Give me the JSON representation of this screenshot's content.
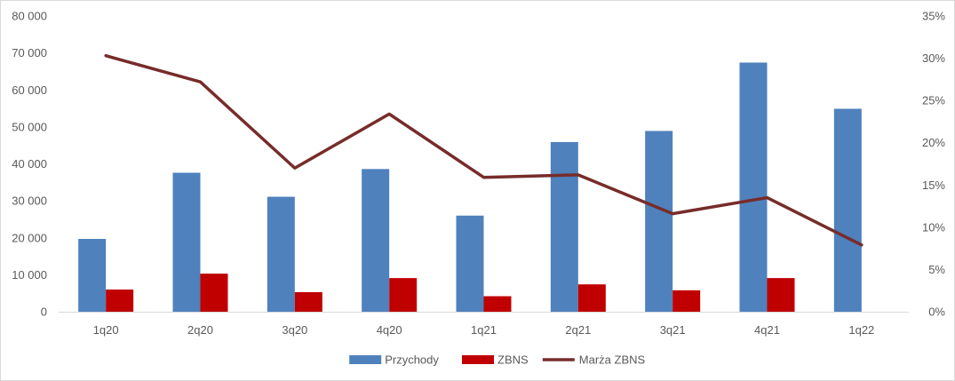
{
  "chart_data": {
    "type": "bar",
    "categories": [
      "1q20",
      "2q20",
      "3q20",
      "4q20",
      "1q21",
      "2q21",
      "3q21",
      "4q21",
      "1q22"
    ],
    "series": [
      {
        "name": "Przychody",
        "kind": "bar",
        "axis": "left",
        "color": "#4f81bd",
        "values": [
          19700,
          37600,
          31100,
          38600,
          26000,
          45900,
          48900,
          67400,
          54900
        ]
      },
      {
        "name": "ZBNS",
        "kind": "bar",
        "axis": "left",
        "color": "#c00000",
        "values": [
          6000,
          10300,
          5300,
          9100,
          4200,
          7400,
          5800,
          9100,
          null
        ]
      },
      {
        "name": "Marża ZBNS",
        "kind": "line",
        "axis": "right",
        "color": "#772c2a",
        "values": [
          0.303,
          0.272,
          0.17,
          0.234,
          0.159,
          0.162,
          0.116,
          0.135,
          0.079
        ]
      }
    ],
    "y_left": {
      "min": 0,
      "max": 80000,
      "ticks": [
        0,
        10000,
        20000,
        30000,
        40000,
        50000,
        60000,
        70000,
        80000
      ],
      "tick_labels": [
        "0",
        "10 000",
        "20 000",
        "30 000",
        "40 000",
        "50 000",
        "60 000",
        "70 000",
        "80 000"
      ]
    },
    "y_right": {
      "min": 0,
      "max": 0.35,
      "ticks": [
        0,
        0.05,
        0.1,
        0.15,
        0.2,
        0.25,
        0.3,
        0.35
      ],
      "tick_labels": [
        "0%",
        "5%",
        "10%",
        "15%",
        "20%",
        "25%",
        "30%",
        "35%"
      ]
    },
    "grid": false,
    "legend_position": "bottom",
    "title": "",
    "xlabel": "",
    "ylabel": ""
  }
}
